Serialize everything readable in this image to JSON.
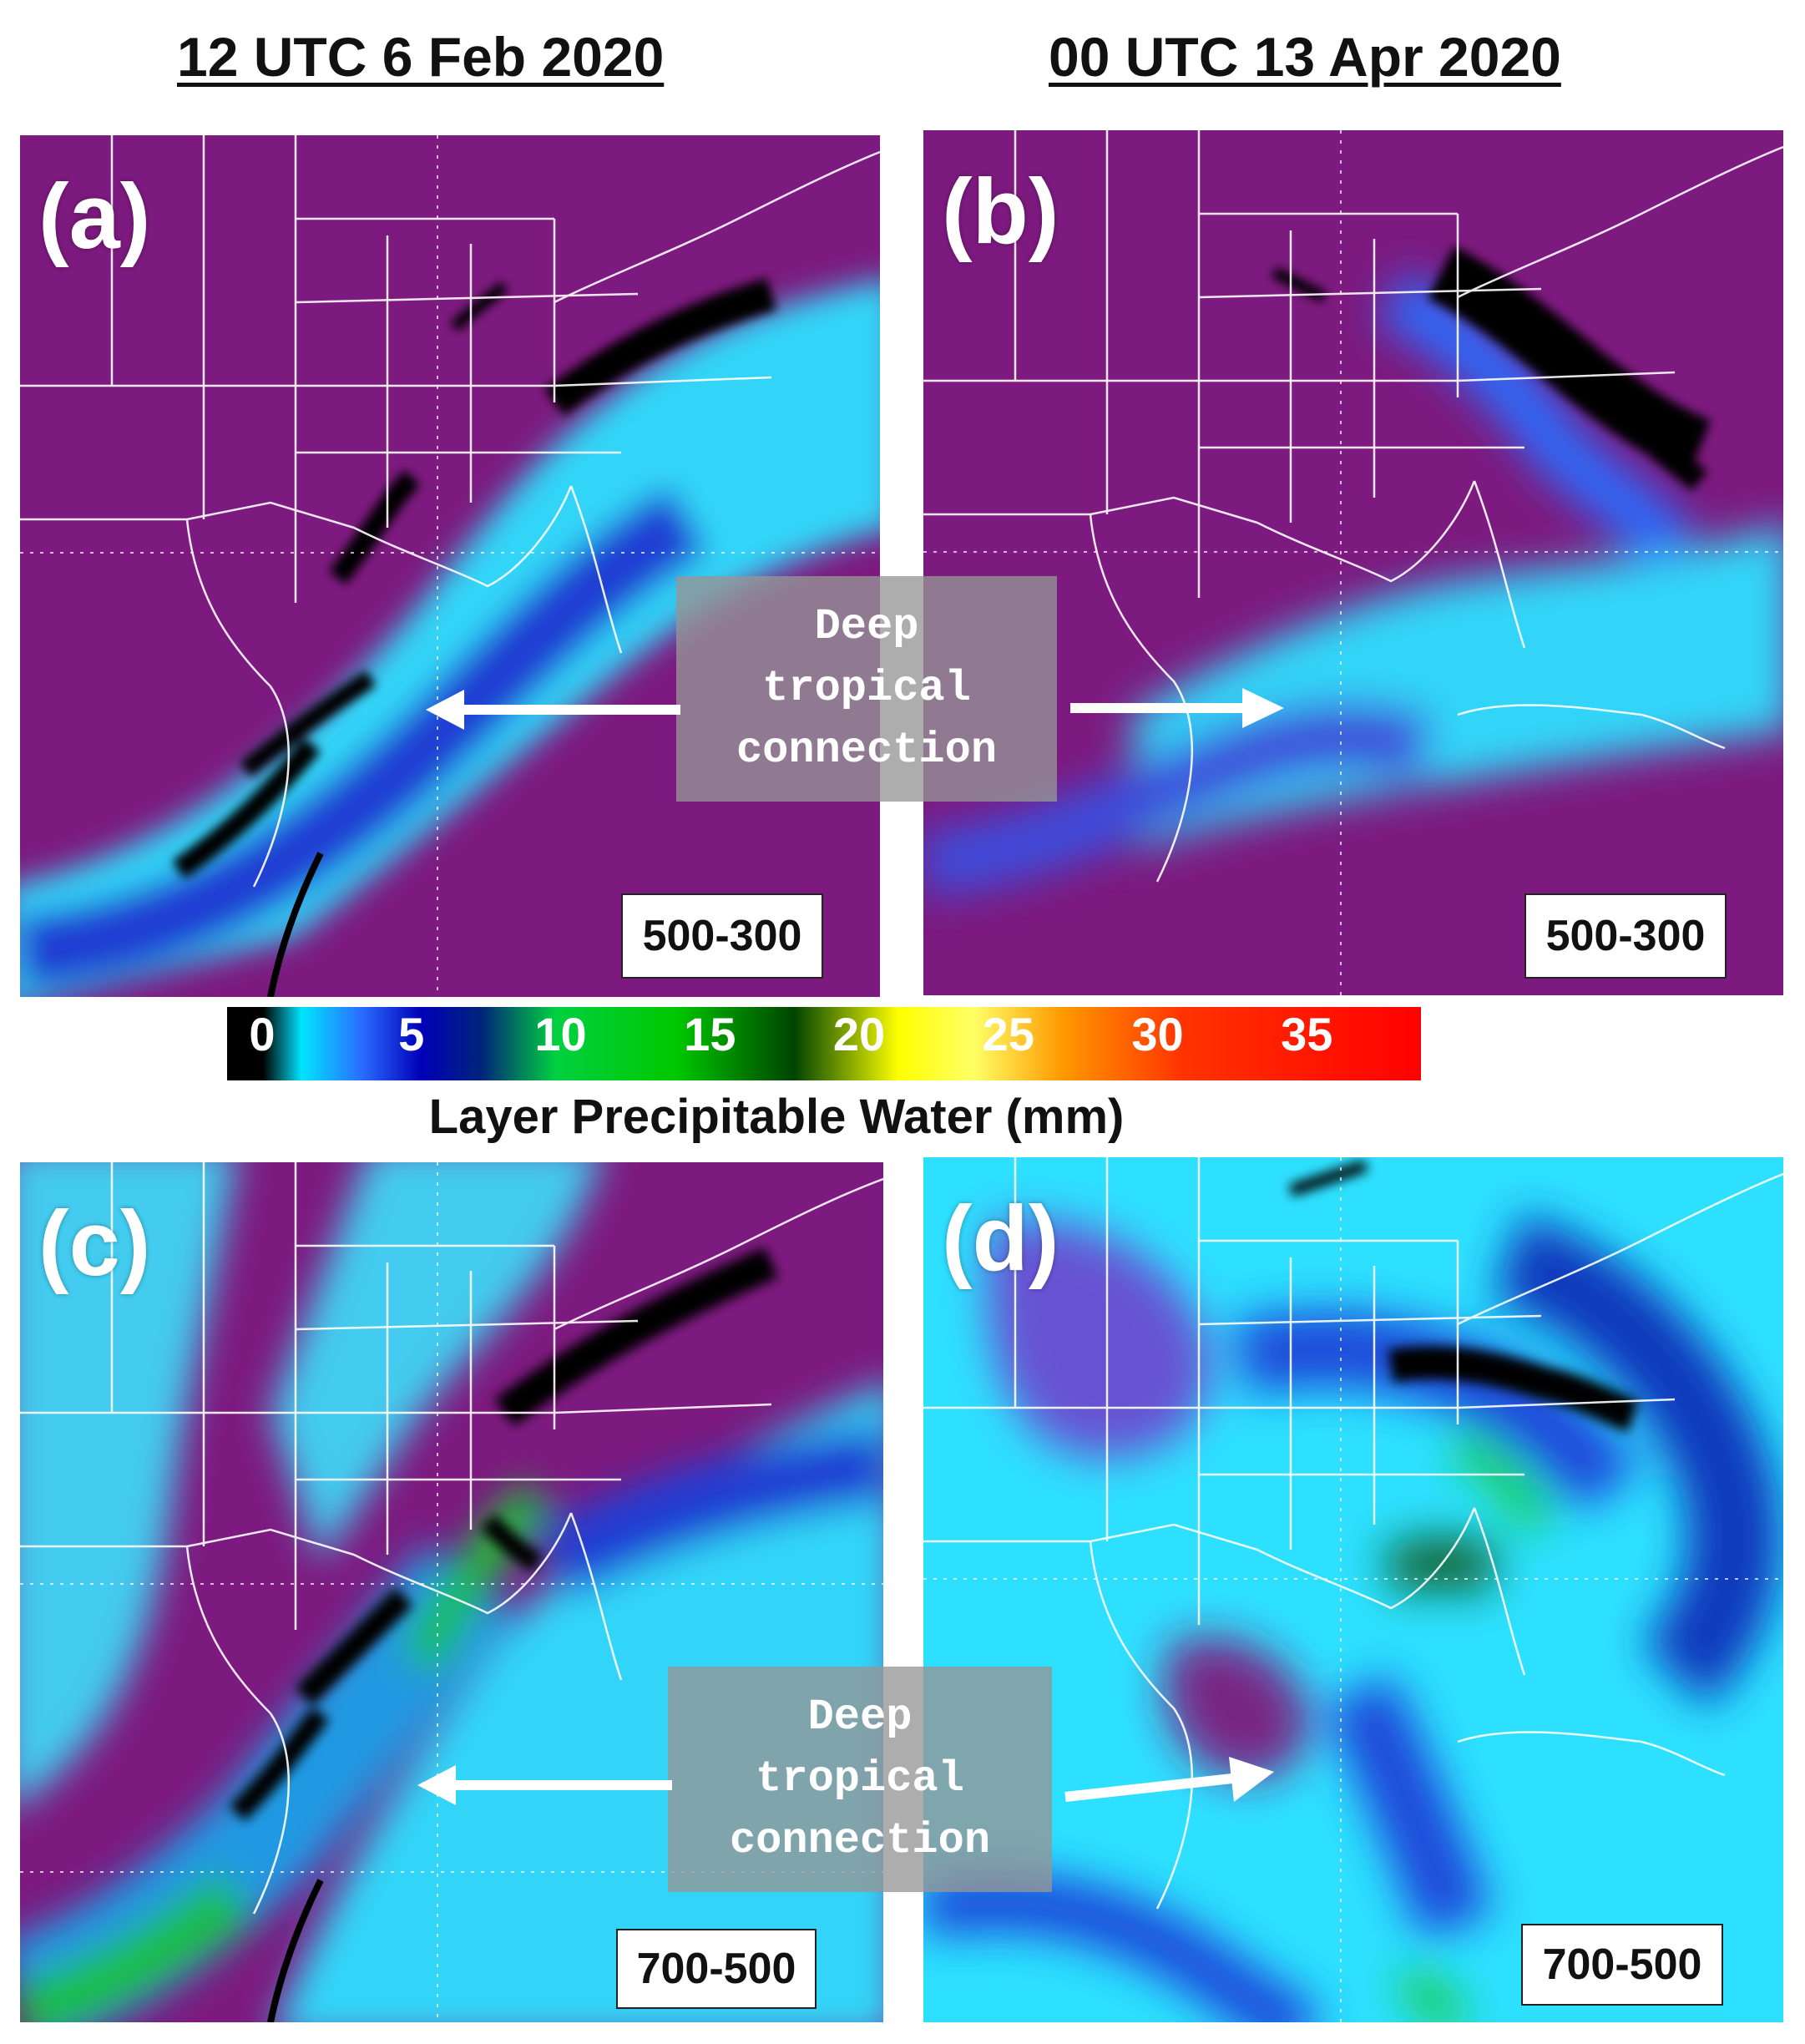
{
  "column_titles": {
    "left": "12 UTC 6 Feb 2020",
    "right": "00 UTC 13 Apr 2020"
  },
  "panels": {
    "a": {
      "label": "(a)",
      "layer": "500-300",
      "date_column": "left"
    },
    "b": {
      "label": "(b)",
      "layer": "500-300",
      "date_column": "right"
    },
    "c": {
      "label": "(c)",
      "layer": "700-500",
      "date_column": "left"
    },
    "d": {
      "label": "(d)",
      "layer": "700-500",
      "date_column": "right"
    }
  },
  "annotations": {
    "top": [
      "Deep",
      "tropical",
      "connection"
    ],
    "bottom": [
      "Deep",
      "tropical",
      "connection"
    ]
  },
  "colorbar": {
    "title": "Layer Precipitable Water (mm)",
    "ticks": [
      "0",
      "5",
      "10",
      "15",
      "20",
      "25",
      "30",
      "35"
    ],
    "tick_values": [
      0,
      5,
      10,
      15,
      20,
      25,
      30,
      35
    ],
    "range": [
      0,
      40
    ],
    "tick_colors": [
      "#ffffff",
      "#ffffff",
      "#ffffff",
      "#ffffff",
      "#ffffff",
      "#ffffff",
      "#ffffff",
      "#ffffff"
    ],
    "stops": [
      {
        "value": 0,
        "color": "#000000"
      },
      {
        "value": 1.2,
        "color": "#000000"
      },
      {
        "value": 2.5,
        "color": "#00e5ff"
      },
      {
        "value": 4.5,
        "color": "#2a6dff"
      },
      {
        "value": 6.5,
        "color": "#0000b8"
      },
      {
        "value": 8.5,
        "color": "#00247a"
      },
      {
        "value": 11,
        "color": "#00d040"
      },
      {
        "value": 15,
        "color": "#00c800"
      },
      {
        "value": 19,
        "color": "#004400"
      },
      {
        "value": 22.5,
        "color": "#ffff00"
      },
      {
        "value": 25,
        "color": "#ffff66"
      },
      {
        "value": 28,
        "color": "#ff9900"
      },
      {
        "value": 32,
        "color": "#ff3300"
      },
      {
        "value": 40,
        "color": "#ff0000"
      }
    ]
  },
  "colors": {
    "dry": "#7d1a7f",
    "moist": "#2ee0ff",
    "very_moist": "#000000",
    "mid_blue": "#1e3fd8",
    "green": "#19c832",
    "state_lines": "#ffffff"
  }
}
